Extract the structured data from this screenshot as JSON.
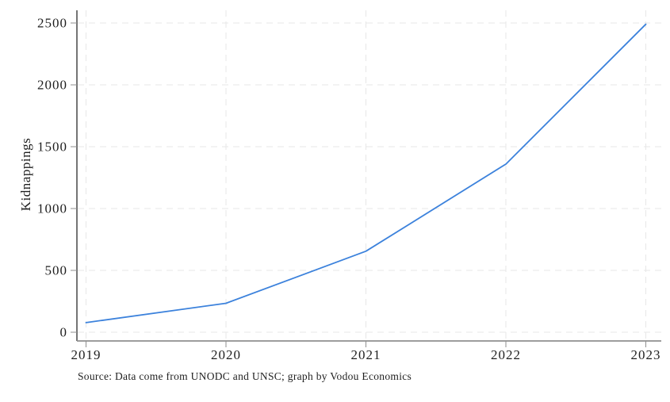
{
  "chart_data": {
    "type": "line",
    "title": "",
    "xlabel": "",
    "ylabel": "Kidnappings",
    "x": [
      2019,
      2020,
      2021,
      2022,
      2023
    ],
    "series": [
      {
        "name": "Kidnappings",
        "values": [
          78,
          234,
          655,
          1359,
          2490
        ],
        "color": "#3c82dc"
      }
    ],
    "xlim": [
      2019,
      2023
    ],
    "ylim": [
      0,
      2500
    ],
    "xticks": [
      2019,
      2020,
      2021,
      2022,
      2023
    ],
    "yticks": [
      0,
      500,
      1000,
      1500,
      2000,
      2500
    ],
    "grid": "both-dashed",
    "legend": "none",
    "source_note": "Source: Data come from UNODC and UNSC; graph by Vodou Economics"
  },
  "notes": {
    "source": "Source: Data come from UNODC and UNSC; graph by Vodou Economics"
  },
  "colors": {
    "line": "#3c82dc",
    "grid": "#e7e7e7",
    "x_axis": "#8f8f8f",
    "y_axis": "#2b2b2b",
    "tick": "#8f8f8f",
    "text": "#1f1f1f",
    "background": "#ffffff"
  }
}
